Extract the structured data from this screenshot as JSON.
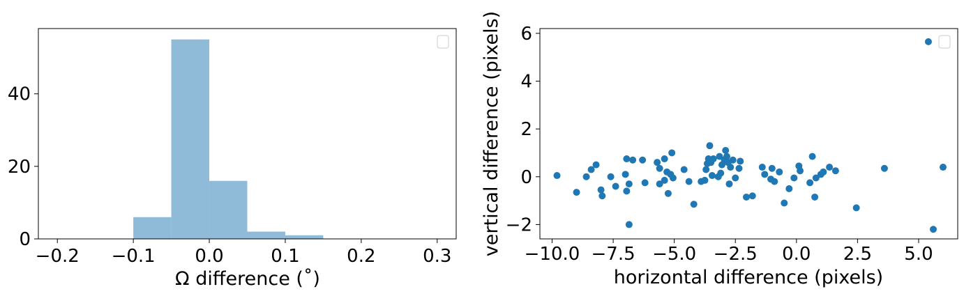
{
  "chart_data": [
    {
      "type": "bar",
      "subtype": "histogram",
      "xlabel": "Ω difference (˚)",
      "ylabel": "",
      "xlim": [
        -0.225,
        0.325
      ],
      "ylim": [
        0,
        58
      ],
      "x_ticks": [
        "−0.2",
        "−0.1",
        "0.0",
        "0.1",
        "0.2",
        "0.3"
      ],
      "x_tick_values": [
        -0.2,
        -0.1,
        0.0,
        0.1,
        0.2,
        0.3
      ],
      "y_ticks": [
        "0",
        "20",
        "40"
      ],
      "y_tick_values": [
        0,
        20,
        40
      ],
      "bin_edges": [
        -0.1,
        -0.05,
        0.0,
        0.05,
        0.1,
        0.15
      ],
      "values": [
        6,
        55,
        16,
        2,
        1
      ],
      "color": "#8fbad8",
      "legend": "top-right (empty)",
      "grid": false
    },
    {
      "type": "scatter",
      "xlabel": "horizontal difference (pixels)",
      "ylabel": "vertical difference (pixels)",
      "xlim": [
        -10.5,
        6.6
      ],
      "ylim": [
        -2.6,
        6.2
      ],
      "x_ticks": [
        "−10.0",
        "−7.5",
        "−5.0",
        "−2.5",
        "0.0",
        "2.5",
        "5.0"
      ],
      "x_tick_values": [
        -10,
        -7.5,
        -5,
        -2.5,
        0,
        2.5,
        5
      ],
      "y_ticks": [
        "−2",
        "0",
        "2",
        "4",
        "6"
      ],
      "y_tick_values": [
        -2,
        0,
        2,
        4,
        6
      ],
      "color": "#1f77b4",
      "legend": "top-right (empty)",
      "grid": false,
      "points": [
        [
          -9.8,
          0.05
        ],
        [
          -9.0,
          -0.65
        ],
        [
          -8.6,
          0.0
        ],
        [
          -8.4,
          0.3
        ],
        [
          -8.2,
          0.5
        ],
        [
          -8.0,
          -0.55
        ],
        [
          -7.95,
          -0.8
        ],
        [
          -7.6,
          0.0
        ],
        [
          -7.4,
          -0.4
        ],
        [
          -7.0,
          0.1
        ],
        [
          -6.95,
          0.75
        ],
        [
          -6.95,
          -0.6
        ],
        [
          -6.85,
          -0.3
        ],
        [
          -6.85,
          -2.0
        ],
        [
          -6.7,
          0.7
        ],
        [
          -6.3,
          0.7
        ],
        [
          -6.2,
          -0.25
        ],
        [
          -5.7,
          0.6
        ],
        [
          -5.6,
          0.35
        ],
        [
          -5.6,
          -0.3
        ],
        [
          -5.4,
          0.75
        ],
        [
          -5.4,
          -0.15
        ],
        [
          -5.3,
          0.2
        ],
        [
          -5.25,
          -0.7
        ],
        [
          -5.15,
          0.1
        ],
        [
          -5.1,
          1.0
        ],
        [
          -5.05,
          -0.05
        ],
        [
          -4.6,
          0.3
        ],
        [
          -4.4,
          -0.2
        ],
        [
          -4.2,
          -1.15
        ],
        [
          -3.9,
          -0.2
        ],
        [
          -3.75,
          -0.15
        ],
        [
          -3.7,
          0.3
        ],
        [
          -3.65,
          0.55
        ],
        [
          -3.6,
          0.75
        ],
        [
          -3.55,
          1.3
        ],
        [
          -3.5,
          0.6
        ],
        [
          -3.45,
          0.05
        ],
        [
          -3.4,
          0.75
        ],
        [
          -3.2,
          0.0
        ],
        [
          -3.15,
          0.85
        ],
        [
          -3.1,
          0.15
        ],
        [
          -3.05,
          0.5
        ],
        [
          -2.95,
          0.7
        ],
        [
          -2.9,
          1.1
        ],
        [
          -2.85,
          0.85
        ],
        [
          -2.8,
          0.6
        ],
        [
          -2.75,
          -0.3
        ],
        [
          -2.7,
          0.4
        ],
        [
          -2.6,
          0.7
        ],
        [
          -2.5,
          -0.05
        ],
        [
          -2.35,
          0.35
        ],
        [
          -2.3,
          0.65
        ],
        [
          -2.05,
          -0.85
        ],
        [
          -1.8,
          -0.8
        ],
        [
          -1.4,
          0.4
        ],
        [
          -1.3,
          0.1
        ],
        [
          -1.05,
          -0.1
        ],
        [
          -1.0,
          0.35
        ],
        [
          -0.9,
          -0.2
        ],
        [
          -0.7,
          0.2
        ],
        [
          -0.5,
          -1.1
        ],
        [
          -0.3,
          -0.5
        ],
        [
          -0.1,
          -0.05
        ],
        [
          0.1,
          0.45
        ],
        [
          0.15,
          0.25
        ],
        [
          0.55,
          -0.25
        ],
        [
          0.65,
          0.85
        ],
        [
          0.75,
          -0.85
        ],
        [
          0.8,
          -0.05
        ],
        [
          1.0,
          0.1
        ],
        [
          1.1,
          0.2
        ],
        [
          1.35,
          0.4
        ],
        [
          1.6,
          0.25
        ],
        [
          2.45,
          -1.3
        ],
        [
          3.6,
          0.35
        ],
        [
          5.4,
          5.65
        ],
        [
          5.6,
          -2.2
        ],
        [
          6.0,
          0.4
        ]
      ]
    }
  ]
}
